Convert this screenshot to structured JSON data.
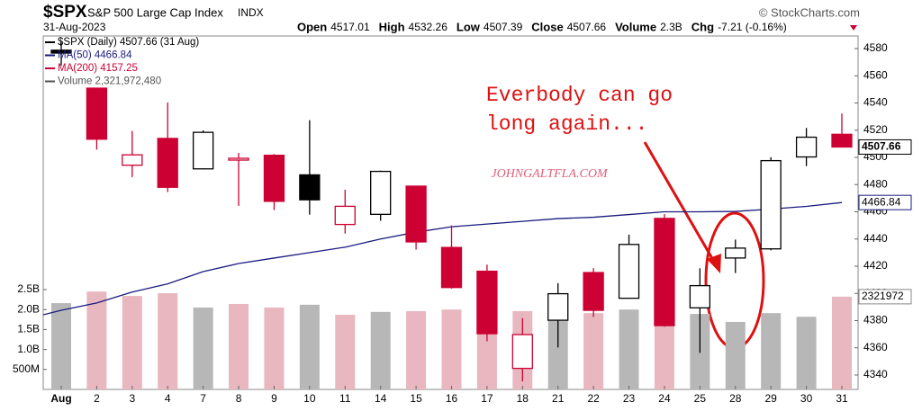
{
  "header": {
    "symbol": "$SPX",
    "name": "S&P 500 Large Cap Index",
    "exchange": "INDX",
    "credit": "© StockCharts.com",
    "date": "31-Aug-2023",
    "stats": [
      {
        "label": "Open",
        "value": "4517.01"
      },
      {
        "label": "High",
        "value": "4532.26"
      },
      {
        "label": "Low",
        "value": "4507.39"
      },
      {
        "label": "Close",
        "value": "4507.66"
      },
      {
        "label": "Volume",
        "value": "2.3B"
      },
      {
        "label": "Chg",
        "value": "-7.21 (-0.16%)"
      }
    ]
  },
  "chart_data": {
    "type": "candlestick",
    "categories": [
      "Aug",
      "2",
      "3",
      "4",
      "7",
      "8",
      "9",
      "10",
      "11",
      "14",
      "15",
      "16",
      "17",
      "18",
      "21",
      "22",
      "23",
      "24",
      "25",
      "28",
      "29",
      "30",
      "31"
    ],
    "open": [
      4578.83,
      4550.93,
      4494.27,
      4513.96,
      4491.58,
      4498.03,
      4501.57,
      4487.16,
      4450.69,
      4458.13,
      4478.87,
      4433.79,
      4416.32,
      4344.88,
      4380.28,
      4415.33,
      4396.44,
      4455.16,
      4389.38,
      4426.03,
      4432.75,
      4500.34,
      4517.01
    ],
    "high": [
      4584.62,
      4550.93,
      4519.49,
      4540.34,
      4519.84,
      4503.31,
      4502.44,
      4527.37,
      4476.23,
      4490.33,
      4478.87,
      4449.95,
      4421.17,
      4381.82,
      4407.55,
      4418.59,
      4443.18,
      4458.3,
      4418.46,
      4439.56,
      4500.14,
      4521.65,
      4532.26
    ],
    "low": [
      4567.53,
      4505.75,
      4485.54,
      4474.55,
      4491.15,
      4464.39,
      4461.33,
      4457.92,
      4443.98,
      4453.44,
      4432.19,
      4403.55,
      4364.83,
      4335.31,
      4360.3,
      4382.77,
      4396.44,
      4375.55,
      4356.29,
      4414.98,
      4431.68,
      4493.59,
      4507.39
    ],
    "close": [
      4576.73,
      4513.39,
      4501.89,
      4478.03,
      4518.44,
      4499.38,
      4467.71,
      4468.83,
      4464.05,
      4489.72,
      4437.86,
      4404.33,
      4370.36,
      4369.71,
      4399.77,
      4387.55,
      4436.01,
      4376.31,
      4405.71,
      4433.31,
      4497.63,
      4514.87,
      4507.66
    ],
    "up_color": "#000000",
    "down_color": "#cc0033",
    "ma50": {
      "color": "#1a1a80",
      "values": [
        4387.6,
        4393,
        4401,
        4407,
        4416,
        4422,
        4426,
        4430,
        4434,
        4440,
        4445,
        4449,
        4451,
        4453,
        4455,
        4456,
        4458,
        4460,
        4460,
        4460.3,
        4462,
        4464,
        4466.84
      ]
    },
    "volume": {
      "up_color": "#b7b7b7",
      "down_color": "#e8b7bf",
      "axis": "y2",
      "values": [
        2160000000,
        2450000000,
        2340000000,
        2410000000,
        2050000000,
        2140000000,
        2050000000,
        2120000000,
        1870000000,
        1940000000,
        1960000000,
        2000000000,
        2140000000,
        1960000000,
        2090000000,
        1910000000,
        2000000000,
        2140000000,
        1890000000,
        1690000000,
        1910000000,
        1820000000,
        2321972480
      ]
    },
    "ylim": [
      4329.4,
      4589.3
    ],
    "yticks": [
      4340,
      4360,
      4380,
      4400,
      4420,
      4440,
      4460,
      4480,
      4500,
      4520,
      4540,
      4560,
      4580
    ],
    "y2lim": [
      0,
      8850000000
    ],
    "y2ticks": [
      {
        "value": 500000000,
        "label": "500M"
      },
      {
        "value": 1000000000,
        "label": "1.0B"
      },
      {
        "value": 1500000000,
        "label": "1.5B"
      },
      {
        "value": 2000000000,
        "label": "2.0B"
      },
      {
        "value": 2500000000,
        "label": "2.5B"
      }
    ],
    "legend": [
      {
        "text": "$SPX (Daily) 4507.66 (31 Aug)",
        "color": "#000000"
      },
      {
        "text": "MA(50) 4466.84",
        "color": "#1a1a80"
      },
      {
        "text": "MA(200) 4157.25",
        "color": "#cc0033"
      },
      {
        "text": "Volume 2,321,972,480",
        "color": "#555555"
      }
    ],
    "price_tag": "4507.66",
    "ma_tag": "4466.84",
    "volume_tag": "2321972",
    "annotation": [
      "Everbody can go",
      "long again..."
    ],
    "watermark": "JOHNGALTFLA.COM"
  }
}
